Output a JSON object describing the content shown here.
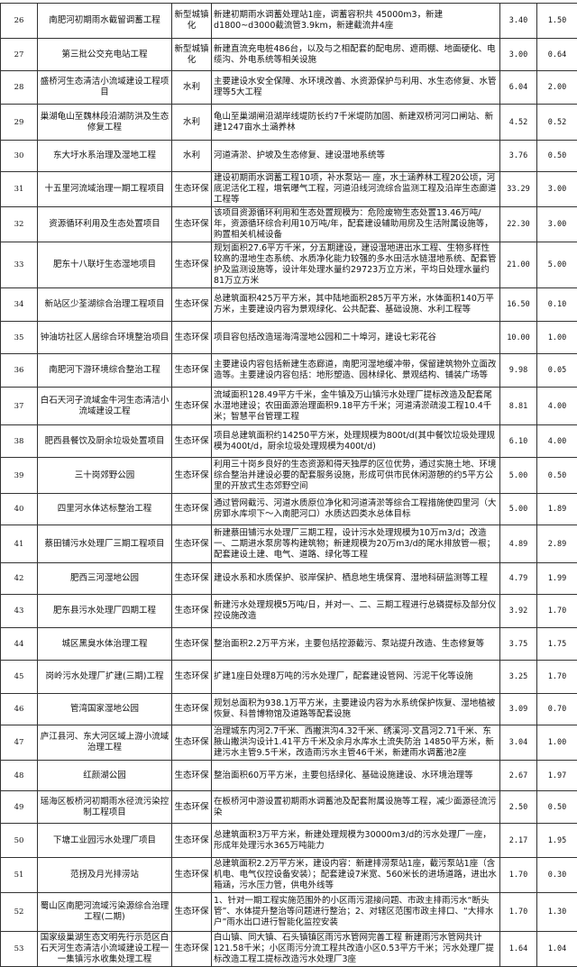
{
  "rows": [
    {
      "no": "26",
      "name": "南肥河初期雨水截留调蓄工程",
      "category": "新型城镇化",
      "content": "新建初期雨水调蓄处理站1座，调蓄容积共 45000m3，新建d1800~d3000截流管3.9km，新建截流井4座",
      "v1": "3.40",
      "v2": "1.50"
    },
    {
      "no": "27",
      "name": "第三批公交充电站工程",
      "category": "新型城镇化",
      "content": "新建直流充电桩486台，以及与之相配套的配电房、遮雨棚、地面硬化、电缆沟、外电系统等相关设施",
      "v1": "3.00",
      "v2": "0.64"
    },
    {
      "no": "28",
      "name": "盛桥河生态清洁小流域建设工程项目",
      "category": "水利",
      "content": "主要建设水安全保障、水环境改善、水资源保护与利用、水生态修复、水管理等5大工程",
      "v1": "6.04",
      "v2": "2.00"
    },
    {
      "no": "29",
      "name": "巢湖龟山至魏林段沿湖防洪及生态修复工程",
      "category": "水利",
      "content": "龟山至巢湖闸沿湖岸线堤防长约7千米堤防加固、新建双桥河河口闸站、新建1247亩水土涵养林",
      "v1": "4.52",
      "v2": "0.52"
    },
    {
      "no": "30",
      "name": "东大圩水系治理及湿地工程",
      "category": "水利",
      "content": "河道清淤、护坡及生态修复、建设湿地系统等",
      "v1": "3.76",
      "v2": "0.50"
    },
    {
      "no": "31",
      "name": "十五里河流域治理一期工程项目",
      "category": "生态环保",
      "content": "建设初期雨水调蓄工程10项，补水泵站一 座，水土涵养林工程20公顷，河底泥活化工程，增氧曝气工程，河道沿线河流综合监测工程及沿岸生态廊道工程等",
      "v1": "33.29",
      "v2": "3.00"
    },
    {
      "no": "32",
      "name": "资源循环利用及生态处置项目",
      "category": "生态环保",
      "content": "该项目资源循环利用和生态处置规模为：危险废物生态处置13.46万吨/年，资源循环综合利用10万吨/年，配套建设辅助用房及生活附属设施等，购置相关机械设备",
      "v1": "22.30",
      "v2": "3.00"
    },
    {
      "no": "33",
      "name": "肥东十八联圩生态湿地项目",
      "category": "生态环保",
      "content": "规划面积27.6平方千米，分五期建设，建设湿地进出水工程、生物多样性较高的湿地生态系统、水质净化能力较强的多水田活水链湿地系统、配套管护及监测设施等，设计年处理水量约29723万立方米，平均日处理水量约81万立方米",
      "v1": "21.00",
      "v2": "5.00"
    },
    {
      "no": "34",
      "name": "新站区少荃湖综合治理工程项目",
      "category": "生态环保",
      "content": "总建筑面积425万平方米，其中陆地面积285万平方米，水体面积140万平方米，主要建设内容为景观绿化、公共配套、基础设施、水利工程等",
      "v1": "16.50",
      "v2": "0.10"
    },
    {
      "no": "35",
      "name": "钟油坊社区人居综合环境整治项目",
      "category": "生态环保",
      "content": "项目容包括改造瑶海湾湿地公园和二十埠河，建设七彩花谷",
      "v1": "10.00",
      "v2": "1.00"
    },
    {
      "no": "36",
      "name": "南肥河下游环境综合整治工程",
      "category": "生态环保",
      "content": "主要建设内容包括新建生态廊道，南肥河湿地缓冲带，保留建筑物外立面改造等。主要建设内容包括：地形塑造、园林绿化、景观结构、铺装广场等",
      "v1": "9.98",
      "v2": "0.05"
    },
    {
      "no": "37",
      "name": "白石天河子流域金牛河生态清洁小流域建设工程",
      "category": "生态环保",
      "content": "流域面积128.49平方千米，金牛镇及万山镇污水处理厂提标改造及配套尾水湿地建设；农田面源治理面积9.18平方千米；河道清淤疏浚工程10.4千米；智慧平台管理工程",
      "v1": "8.81",
      "v2": "4.00"
    },
    {
      "no": "38",
      "name": "肥西县餐饮及厨余垃圾处置项目",
      "category": "生态环保",
      "content": "项目总建筑面积约14250平方米，处理规模为800t/d(其中餐饮垃圾处理规模为400t/d，厨余垃圾处理规模为400t/d)",
      "v1": "6.10",
      "v2": "4.00"
    },
    {
      "no": "39",
      "name": "三十岗郊野公园",
      "category": "生态环保",
      "content": "利用三十岗乡良好的生态资源和得天独厚的区位优势，通过实施土地、环境综合整治并建设必要的配套服务设施，形成可供市民休闲游憩的约5平方公里的开放式生态郊野空间",
      "v1": "5.00",
      "v2": "0.50"
    },
    {
      "no": "40",
      "name": "四里河水体达标整治工程",
      "category": "生态环保",
      "content": "通过管网截污、河道水质原位净化和河道清淤等综合工程措施使四里河（大房郢水库坝下～入南肥河口）水质达四类水总体目标",
      "v1": "5.00",
      "v2": "1.89"
    },
    {
      "no": "41",
      "name": "蔡田铺污水处理厂三期工程项目",
      "category": "生态环保",
      "content": "新建蔡田铺污水处理厂三期工程，设计污水处理规模为10万m3/d；改造一、二期进水泵房等构建筑物；新建规模为20万m3/d的尾水排放管一根；配套建设土建、电气、道路、绿化等工程",
      "v1": "4.89",
      "v2": "2.89"
    },
    {
      "no": "42",
      "name": "肥西三河湿地公园",
      "category": "生态环保",
      "content": "建设水系和水质保护、驳岸保护、栖息地生境保育、湿地科研监测等工程",
      "v1": "4.79",
      "v2": "1.99"
    },
    {
      "no": "43",
      "name": "肥东县污水处理厂四期工程",
      "category": "生态环保",
      "content": "新建污水处理规模5万吨/日，并对一、二、三期工程进行总磷提标及部分仪控设施改造",
      "v1": "3.92",
      "v2": "1.70"
    },
    {
      "no": "44",
      "name": "城区黑臭水体治理工程",
      "category": "生态环保",
      "content": "整治面积2.2万平方米，主要包括控源截污、泵站提升改造、生态修复等",
      "v1": "3.75",
      "v2": "1.75"
    },
    {
      "no": "45",
      "name": "岗岭污水处理厂扩建(三期)工程",
      "category": "生态环保",
      "content": "扩建1座日处理8万吨的污水处理厂，配套建设管网、污泥干化等设施",
      "v1": "3.25",
      "v2": "1.70"
    },
    {
      "no": "46",
      "name": "管湾国家湿地公园",
      "category": "生态环保",
      "content": "规划总面积为938.1万平方米，主要建设内容为水系统保护恢复、湿地植被恢复、科普博物馆及道路等配套设施",
      "v1": "3.09",
      "v2": "0.70"
    },
    {
      "no": "47",
      "name": "庐江县河、东大河区域上游小流域治理工程",
      "category": "生态环保",
      "content": "治理城东内河2.7千米、西撇洪沟4.32千米、绣溪河-文昌河2.71千米、东腋山撇洪沟设计1.41平方千米及余月水库水土流失防治 14850平方米，新建污水主管9.5千米，改造雨污水主管46千米，新建雨水调蓄池2座",
      "v1": "3.04",
      "v2": "1.00"
    },
    {
      "no": "48",
      "name": "红颜湖公园",
      "category": "生态环保",
      "content": "整治面积60万平方米，主要包括绿化、基础设施建设、水环境治理等",
      "v1": "2.67",
      "v2": "1.97"
    },
    {
      "no": "49",
      "name": "瑶海区板桥河初期雨水径流污染控制工程项目",
      "category": "生态环保",
      "content": "在板桥河中游设置初期雨水调蓄池及配套附属设施等工程，减少面源径流污染",
      "v1": "2.50",
      "v2": "0.50"
    },
    {
      "no": "50",
      "name": "下塘工业园污水处理厂项目",
      "category": "生态环保",
      "content": "总建筑面积3万平方米，新建处理规模为30000m3/d的污水处理厂一座，形成年处理污水365万吨能力",
      "v1": "2.17",
      "v2": "1.95"
    },
    {
      "no": "51",
      "name": "范拐及月光排涝站",
      "category": "生态环保",
      "content": "总建筑面积2.2万平方米，建设内容：新建排涝泵站1座，截污泵站1座（含机电、电气仪控设备安装）；配套建设7米宽、560米长的进场道路，进出水箱涵，污水压力管，供电外线等",
      "v1": "1.70",
      "v2": "0.30"
    },
    {
      "no": "52",
      "name": "蜀山区南肥河流域污染源综合治理工程(二期)",
      "category": "生态环保",
      "content": "1、针对一期工程实施范围外的小区雨污混接问题、市政主排雨污水“断头管”、水体提升整治等问题进行整治；2、对辖区范围市政主排口、“大排水户”雨水出口进行智能化监控安装",
      "v1": "1.70",
      "v2": "1.30"
    },
    {
      "no": "53",
      "name": "国家级巢湖生态文明先行示范区白石天河生态清洁小流域建设工程一一集镇污水收集处理工程",
      "category": "生态环保",
      "content": "白山镇、同大镇、石头镇镇区雨污水管网完善工程 新建雨污水管网共计121.58千米；小区雨污分流工程共改造小区0.53平方千米；污水处理厂提标改造工程工提标改造污水处理厂3座",
      "v1": "1.64",
      "v2": "1.04"
    }
  ]
}
